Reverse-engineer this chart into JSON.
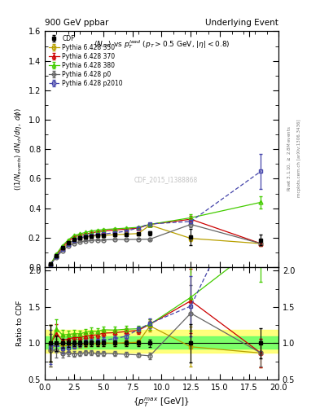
{
  "title_left": "900 GeV ppbar",
  "title_right": "Underlying Event",
  "subtitle": "$\\langle N_{ch}\\rangle$ vs $p_T^{lead}$ ($p_T > 0.5$ GeV, $|\\eta| < 0.8$)",
  "xlabel": "$\\{p_T^{max}$ [GeV]$\\}$",
  "ylabel_main": "$((1/N_{events})\\ dN_{ch}/d\\eta,\\ d\\phi)$",
  "ylabel_ratio": "Ratio to CDF",
  "watermark": "CDF_2015_I1388868",
  "right_label1": "Rivet 3.1.10, $\\geq$ 2.8M events",
  "right_label2": "mcplots.cern.ch [arXiv:1306.3436]",
  "cdf_x": [
    0.5,
    1.0,
    1.5,
    2.0,
    2.5,
    3.0,
    3.5,
    4.0,
    4.5,
    5.0,
    6.0,
    7.0,
    8.0,
    9.0,
    12.5,
    18.5
  ],
  "cdf_y": [
    0.02,
    0.075,
    0.13,
    0.165,
    0.19,
    0.2,
    0.205,
    0.21,
    0.215,
    0.215,
    0.22,
    0.222,
    0.225,
    0.23,
    0.205,
    0.185
  ],
  "cdf_yerr": [
    0.005,
    0.008,
    0.008,
    0.008,
    0.008,
    0.008,
    0.008,
    0.008,
    0.008,
    0.008,
    0.008,
    0.008,
    0.008,
    0.012,
    0.055,
    0.038
  ],
  "p350_x": [
    0.5,
    1.0,
    1.5,
    2.0,
    2.5,
    3.0,
    3.5,
    4.0,
    4.5,
    5.0,
    6.0,
    7.0,
    8.0,
    9.0,
    12.5,
    18.5
  ],
  "p350_y": [
    0.018,
    0.075,
    0.125,
    0.16,
    0.185,
    0.196,
    0.204,
    0.21,
    0.214,
    0.216,
    0.22,
    0.224,
    0.228,
    0.285,
    0.195,
    0.16
  ],
  "p350_yerr": [
    0.0,
    0.003,
    0.003,
    0.003,
    0.003,
    0.003,
    0.003,
    0.003,
    0.003,
    0.003,
    0.003,
    0.003,
    0.003,
    0.008,
    0.02,
    0.015
  ],
  "p350_color": "#b8a000",
  "p370_x": [
    0.5,
    1.0,
    1.5,
    2.0,
    2.5,
    3.0,
    3.5,
    4.0,
    4.5,
    5.0,
    6.0,
    7.0,
    8.0,
    9.0,
    12.5,
    18.5
  ],
  "p370_y": [
    0.02,
    0.085,
    0.135,
    0.175,
    0.205,
    0.216,
    0.225,
    0.233,
    0.24,
    0.245,
    0.252,
    0.258,
    0.265,
    0.29,
    0.325,
    0.16
  ],
  "p370_yerr": [
    0.0,
    0.003,
    0.003,
    0.003,
    0.003,
    0.003,
    0.003,
    0.003,
    0.003,
    0.003,
    0.003,
    0.003,
    0.003,
    0.008,
    0.025,
    0.015
  ],
  "p370_color": "#cc0000",
  "p380_x": [
    0.5,
    1.0,
    1.5,
    2.0,
    2.5,
    3.0,
    3.5,
    4.0,
    4.5,
    5.0,
    6.0,
    7.0,
    8.0,
    9.0,
    12.5,
    18.5
  ],
  "p380_y": [
    0.02,
    0.09,
    0.145,
    0.185,
    0.215,
    0.226,
    0.236,
    0.245,
    0.25,
    0.255,
    0.26,
    0.265,
    0.27,
    0.29,
    0.335,
    0.44
  ],
  "p380_yerr": [
    0.0,
    0.003,
    0.003,
    0.003,
    0.003,
    0.003,
    0.003,
    0.003,
    0.003,
    0.003,
    0.003,
    0.003,
    0.003,
    0.008,
    0.025,
    0.04
  ],
  "p380_color": "#44cc00",
  "p0_x": [
    0.5,
    1.0,
    1.5,
    2.0,
    2.5,
    3.0,
    3.5,
    4.0,
    4.5,
    5.0,
    6.0,
    7.0,
    8.0,
    9.0,
    12.5,
    18.5
  ],
  "p0_y": [
    0.018,
    0.068,
    0.112,
    0.143,
    0.162,
    0.172,
    0.178,
    0.182,
    0.184,
    0.185,
    0.188,
    0.188,
    0.189,
    0.19,
    0.29,
    0.16
  ],
  "p0_yerr": [
    0.0,
    0.002,
    0.002,
    0.002,
    0.002,
    0.002,
    0.002,
    0.002,
    0.002,
    0.002,
    0.002,
    0.002,
    0.002,
    0.005,
    0.018,
    0.012
  ],
  "p0_color": "#666666",
  "p2010_x": [
    0.5,
    1.0,
    1.5,
    2.0,
    2.5,
    3.0,
    3.5,
    4.0,
    4.5,
    5.0,
    6.0,
    7.0,
    8.0,
    9.0,
    12.5,
    18.5
  ],
  "p2010_y": [
    0.019,
    0.074,
    0.12,
    0.154,
    0.183,
    0.198,
    0.208,
    0.214,
    0.22,
    0.224,
    0.234,
    0.244,
    0.268,
    0.293,
    0.31,
    0.65
  ],
  "p2010_yerr": [
    0.0,
    0.002,
    0.002,
    0.002,
    0.002,
    0.002,
    0.002,
    0.002,
    0.002,
    0.002,
    0.002,
    0.002,
    0.002,
    0.005,
    0.018,
    0.12
  ],
  "p2010_color": "#4444aa",
  "band_yellow_lo": 0.87,
  "band_yellow_hi": 1.18,
  "band_green_lo": 0.93,
  "band_green_hi": 1.09,
  "xlim": [
    0,
    20
  ],
  "ylim_main": [
    0,
    1.6
  ],
  "ylim_ratio": [
    0.5,
    2.05
  ],
  "yticks_main": [
    0.0,
    0.2,
    0.4,
    0.6,
    0.8,
    1.0,
    1.2,
    1.4,
    1.6
  ],
  "yticks_ratio": [
    0.5,
    1.0,
    1.5,
    2.0
  ]
}
